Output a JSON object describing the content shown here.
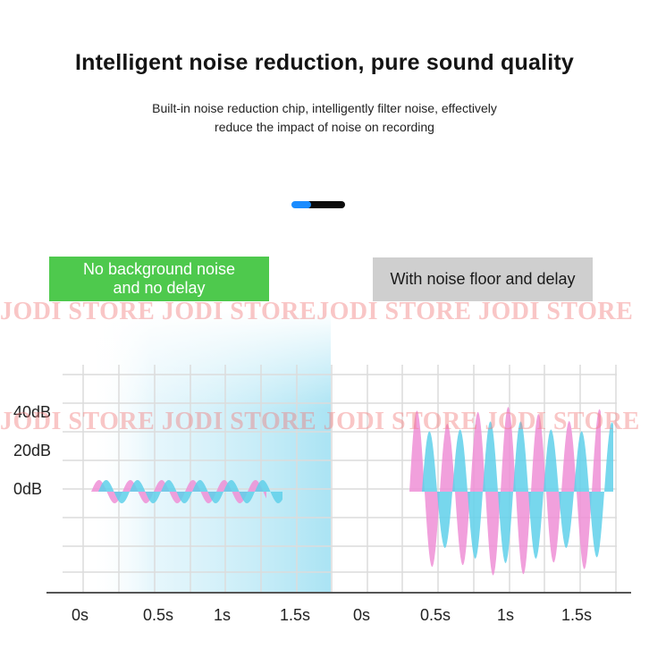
{
  "heading": {
    "title": "Intelligent noise reduction, pure sound quality",
    "subtitle_line1": "Built-in noise reduction chip, intelligently filter noise, effectively",
    "subtitle_line2": "reduce the impact of noise on recording"
  },
  "carousel": {
    "active_color": "#1a8cff",
    "inactive_color": "#0c0c0c"
  },
  "labels": {
    "left_line1": "No background noise",
    "left_line2": "and no delay",
    "right": "With noise floor and delay",
    "left_color": "#4ec94d",
    "right_color": "#cfcfcf"
  },
  "watermark": {
    "row1": "JODI STORE JODI STOREJODI STORE JODI STORE",
    "row2": "JODI STORE JODI STORE JODI STORE JODI STORE"
  },
  "y_ticks": [
    "40dB",
    "20dB",
    "0dB"
  ],
  "x_ticks_left": [
    "0s",
    "0.5s",
    "1s",
    "1.5s"
  ],
  "x_ticks_right": [
    "0s",
    "0.5s",
    "1s",
    "1.5s"
  ],
  "colors": {
    "pink": "#ee8fd6",
    "cyan": "#5fd0ea",
    "highlight": "#a6e2f3",
    "grid": "#dcdcdc"
  }
}
